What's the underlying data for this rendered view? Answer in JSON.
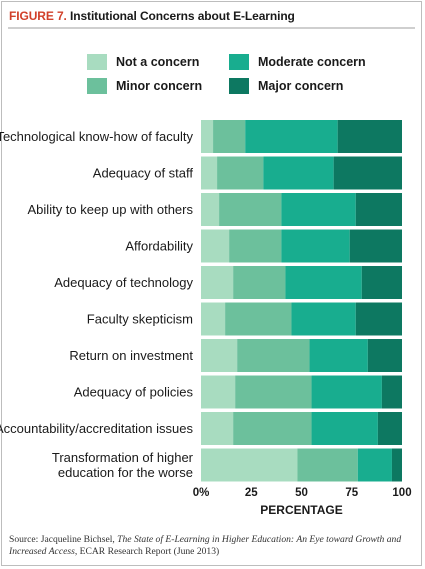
{
  "figure": {
    "number": "FIGURE 7.",
    "title": "Institutional Concerns about E-Learning"
  },
  "legend": [
    {
      "label": "Not a concern",
      "color": "#a8dcc0"
    },
    {
      "label": "Moderate concern",
      "color": "#18ad8f"
    },
    {
      "label": "Minor concern",
      "color": "#6cc09c"
    },
    {
      "label": "Major concern",
      "color": "#0d7861"
    }
  ],
  "chart_data": {
    "type": "bar",
    "orientation": "horizontal",
    "stacked": true,
    "categories": [
      "Technological know-how of faculty",
      "Adequacy of staff",
      "Ability to keep up with others",
      "Affordability",
      "Adequacy of technology",
      "Faculty skepticism",
      "Return on investment",
      "Adequacy of policies",
      "Accountability/accreditation issues",
      "Transformation of higher education for the worse"
    ],
    "series": [
      {
        "name": "Not a concern",
        "color": "#a8dcc0",
        "values": [
          6,
          8,
          9,
          14,
          16,
          12,
          18,
          17,
          16,
          48
        ]
      },
      {
        "name": "Minor concern",
        "color": "#6cc09c",
        "values": [
          16,
          23,
          31,
          26,
          26,
          33,
          36,
          38,
          39,
          30
        ]
      },
      {
        "name": "Moderate concern",
        "color": "#18ad8f",
        "values": [
          46,
          35,
          37,
          34,
          38,
          32,
          29,
          35,
          33,
          17
        ]
      },
      {
        "name": "Major concern",
        "color": "#0d7861",
        "values": [
          32,
          34,
          23,
          26,
          20,
          23,
          17,
          10,
          12,
          5
        ]
      }
    ],
    "xlim": [
      0,
      100
    ],
    "xticks": [
      "0%",
      "25",
      "50",
      "75",
      "100"
    ],
    "xlabel": "PERCENTAGE",
    "ylabel": "",
    "grid": false,
    "legend_position": "top"
  },
  "source": {
    "prefix": "Source: Jacqueline Bichsel, ",
    "title_italic": "The State of E-Learning in Higher Education: An Eye toward Growth and Increased Access",
    "suffix": ", ECAR Research Report (June 2013)"
  }
}
